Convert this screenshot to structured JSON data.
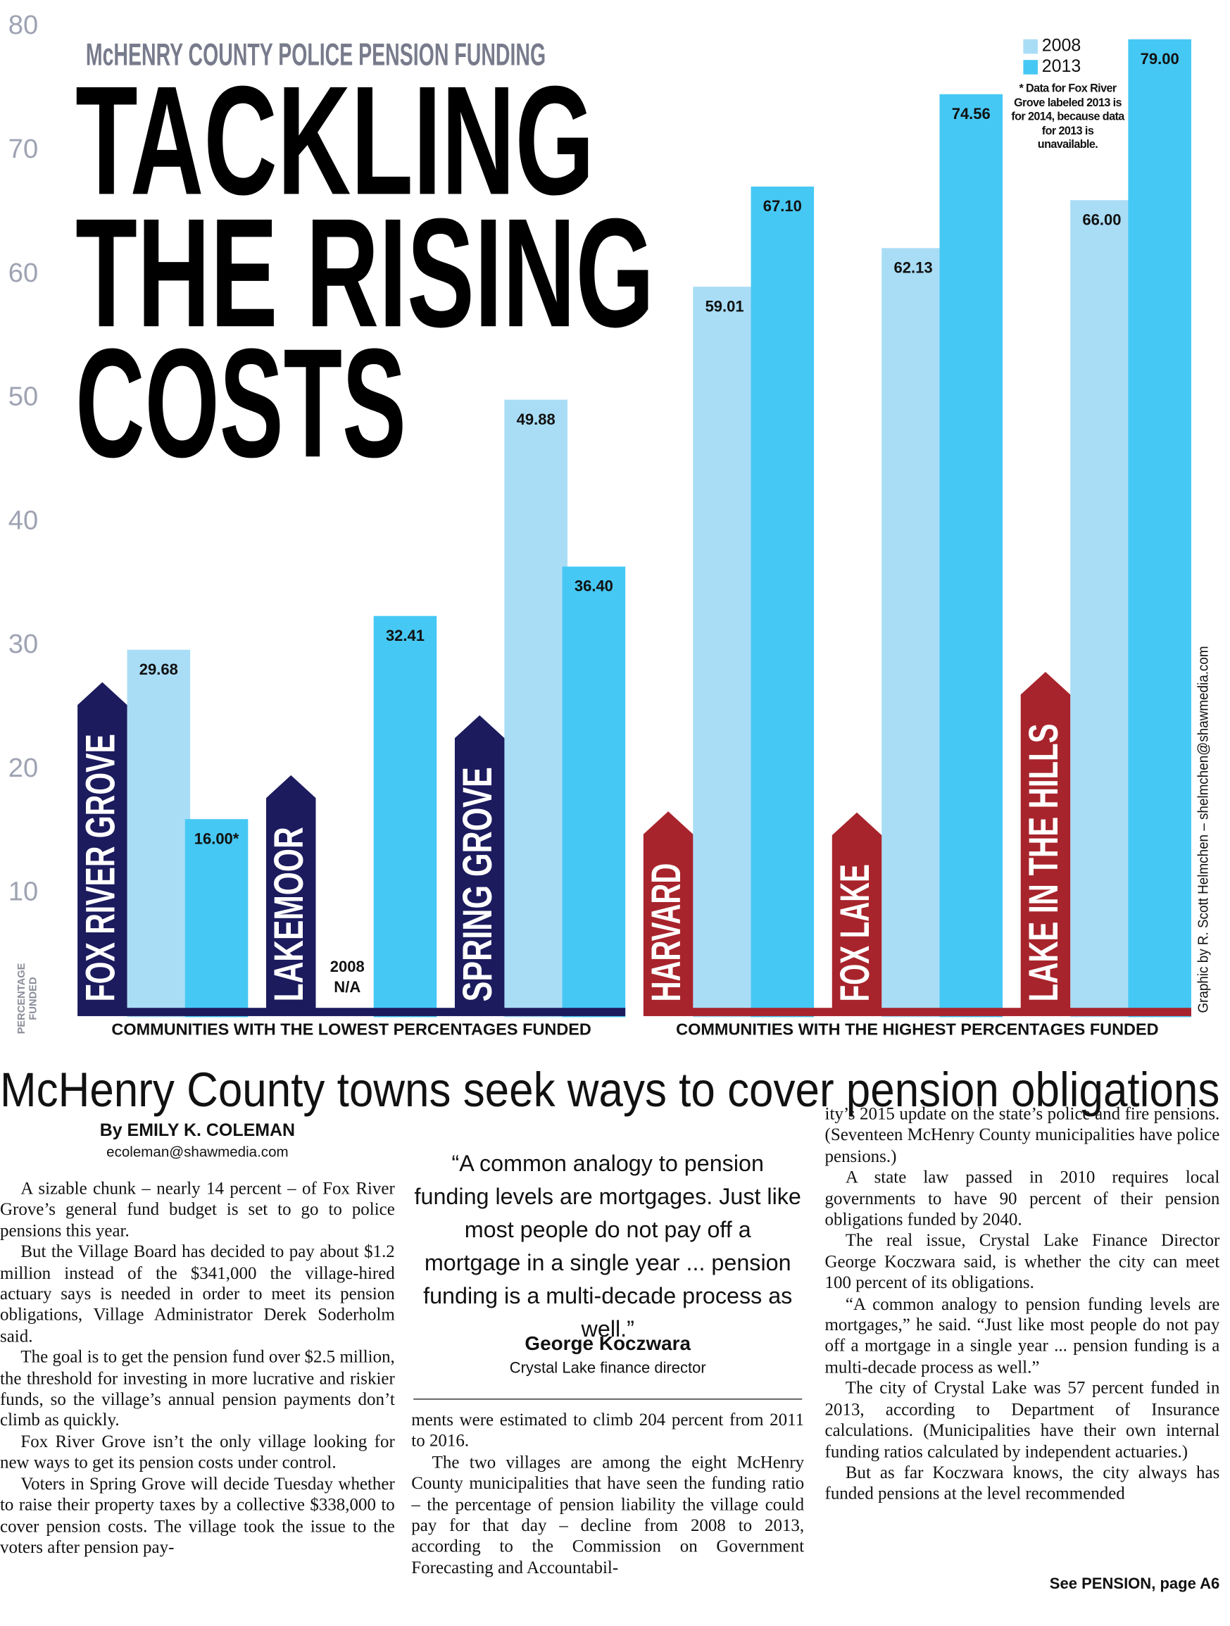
{
  "chart_data": {
    "type": "bar",
    "kicker": "McHENRY COUNTY POLICE PENSION FUNDING",
    "title": [
      "TACKLING",
      "THE RISING",
      "COSTS"
    ],
    "ylabel": "PERCENTAGE FUNDED",
    "categories": [
      "FOX RIVER GROVE",
      "LAKEMOOR",
      "SPRING GROVE",
      "HARVARD",
      "FOX LAKE",
      "LAKE IN THE HILLS"
    ],
    "series": [
      {
        "name": "2008",
        "color": "#a9ddf6",
        "values": [
          29.68,
          null,
          49.88,
          59.01,
          62.13,
          66.0
        ],
        "value_labels": [
          "29.68",
          "2008 N/A",
          "49.88",
          "59.01",
          "62.13",
          "66.00"
        ]
      },
      {
        "name": "2013",
        "color": "#46c8f4",
        "values": [
          16.0,
          32.41,
          36.4,
          67.1,
          74.56,
          79.0
        ],
        "value_labels": [
          "16.00*",
          "32.41",
          "36.40",
          "67.10",
          "74.56",
          "79.00"
        ]
      }
    ],
    "groups": [
      {
        "label": "COMMUNITIES WITH THE LOWEST PERCENTAGES FUNDED",
        "color": "#1c1b5e"
      },
      {
        "label": "COMMUNITIES WITH THE HIGHEST PERCENTAGES FUNDED",
        "color": "#a8242c"
      }
    ],
    "ylim": [
      0,
      80
    ],
    "yticks": [
      10,
      20,
      30,
      40,
      50,
      60,
      70,
      80
    ],
    "grid": false,
    "legend": "top-right",
    "note": "* Data for Fox River Grove labeled 2013 is for 2014, because data for 2013 is unavailable.",
    "credit": "Graphic by R. Scott Helmchen – shelmchen@shawmedia.com"
  },
  "article": {
    "headline": "McHenry County towns seek ways to cover pension obligations",
    "byline": "By EMILY K. COLEMAN",
    "email": "ecoleman@shawmedia.com",
    "pull_quote": {
      "text": "“A common analogy to pension funding levels are mortgages. Just like most people do not pay off a mortgage in a single year ... pension funding is a multi-decade process as well.”",
      "name": "George Koczwara",
      "title": "Crystal Lake finance director"
    },
    "columns": [
      [
        "A sizable chunk – nearly 14 percent – of Fox River Grove’s general fund budget is set to go to police pensions this year.",
        "But the Village Board has decided to pay about $1.2 million instead of the $341,000 the village-hired actuary says is needed in order to meet its pension obligations, Village Administrator Derek Soderholm said.",
        "The goal is to get the pension fund over $2.5 million, the threshold for investing in more lucrative and riskier funds, so the village’s annual pension payments don’t climb as quickly.",
        "Fox River Grove isn’t the only village looking for new ways to get its pension costs under control.",
        "Voters in Spring Grove will decide Tuesday whether to raise their property taxes by a collective $338,000 to cover pension costs. The village took the issue to the voters after pension pay-"
      ],
      [
        "ments were estimated to climb 204 percent from 2011 to 2016.",
        "The two villages are among the eight McHenry County municipalities that have seen the funding ratio – the percentage of pension liability the village could pay for that day – decline from 2008 to 2013, according to the Commission on Government Forecasting and Accountabil-"
      ],
      [
        "ity’s 2015 update on the state’s police and fire pensions. (Seventeen McHenry County municipalities have police pensions.)",
        "A state law passed in 2010 requires local governments to have 90 percent of their pension obligations funded by 2040.",
        "The real issue, Crystal Lake Finance Director George Koczwara said, is whether the city can meet 100 percent of its obligations.",
        "“A common analogy to pension funding levels are mortgages,” he said. “Just like most people do not pay off a mortgage in a single year ... pension funding is a multi-decade process as well.”",
        "The city of Crystal Lake was 57 percent funded in 2013, according to Department of Insurance calculations. (Municipalities have their own internal funding ratios calculated by independent actuaries.)",
        "But as far Koczwara knows, the city always has funded pensions at the level recommended"
      ]
    ],
    "jump": "See PENSION, page A6"
  }
}
